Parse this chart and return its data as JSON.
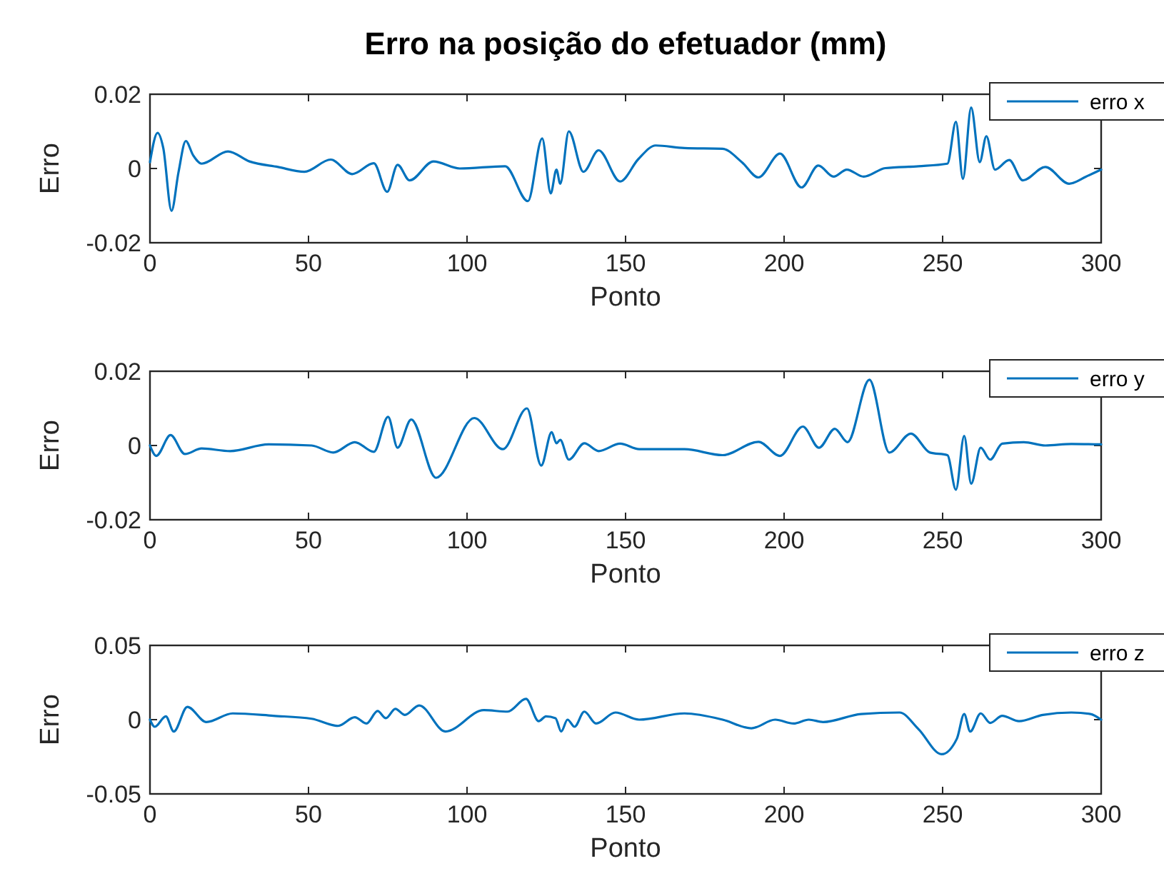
{
  "chart_data": [
    {
      "type": "line",
      "title": "Erro na posição do efetuador (mm)",
      "xlabel": "Ponto",
      "ylabel": "Erro",
      "xlim": [
        0,
        300
      ],
      "xticks": [
        0,
        50,
        100,
        150,
        200,
        250,
        300
      ],
      "ylim": [
        -0.02,
        0.02
      ],
      "yticks": [
        -0.02,
        0,
        0.02
      ],
      "legend": "top right",
      "grid": false,
      "series": [
        {
          "name": "erro x",
          "color": "#0072bd",
          "x": [
            0,
            2.4,
            4.2,
            6.8,
            9,
            11.3,
            13.6,
            16.3,
            24.6,
            31.4,
            40.4,
            48.7,
            57,
            63.8,
            70.6,
            74.8,
            78.1,
            81.9,
            89.4,
            97.7,
            112,
            119.2,
            123.7,
            126.4,
            128.2,
            129.4,
            132.1,
            136.7,
            141.5,
            148.3,
            154,
            159.5,
            168.6,
            180.6,
            186.7,
            191.9,
            198.7,
            205.5,
            210.8,
            215.6,
            219.8,
            225.1,
            231.9,
            242.4,
            251.5,
            254.2,
            256.4,
            259,
            261.7,
            263.8,
            266.5,
            271,
            275.3,
            282.4,
            289.9,
            295.2,
            300
          ],
          "values": [
            0.0017,
            0.0096,
            0.0055,
            -0.0114,
            -0.001,
            0.0074,
            0.0036,
            0.0013,
            0.0046,
            0.0019,
            0.0004,
            -0.0009,
            0.0024,
            -0.0015,
            0.0014,
            -0.0063,
            0.001,
            -0.0032,
            0.0019,
            0,
            0.0006,
            -0.0088,
            0.0081,
            -0.0067,
            -0.0003,
            -0.0041,
            0.01,
            -0.0009,
            0.0049,
            -0.0035,
            0.0025,
            0.0062,
            0.0055,
            0.0053,
            0.0017,
            -0.0024,
            0.004,
            -0.0051,
            0.0008,
            -0.0022,
            -0.0003,
            -0.0022,
            0.0001,
            0.0006,
            0.0013,
            0.0126,
            -0.0028,
            0.0164,
            0.0017,
            0.0087,
            -0.0003,
            0.0023,
            -0.0032,
            0.0004,
            -0.0041,
            -0.0022,
            -0.0003
          ]
        }
      ]
    },
    {
      "type": "line",
      "xlabel": "Ponto",
      "ylabel": "Erro",
      "xlim": [
        0,
        300
      ],
      "xticks": [
        0,
        50,
        100,
        150,
        200,
        250,
        300
      ],
      "ylim": [
        -0.02,
        0.02
      ],
      "yticks": [
        -0.02,
        0,
        0.02
      ],
      "legend": "top right",
      "grid": false,
      "series": [
        {
          "name": "erro y",
          "color": "#0072bd",
          "x": [
            0,
            2,
            6.5,
            11,
            16.3,
            25.3,
            37.4,
            51,
            57.8,
            64.6,
            70.6,
            75.1,
            78.1,
            82.4,
            90.2,
            102.3,
            111.3,
            118.9,
            123.4,
            126.7,
            128.2,
            129.4,
            132.1,
            137,
            141.5,
            148.3,
            154.3,
            168.6,
            180.6,
            191.9,
            198.7,
            205.9,
            211,
            216,
            220,
            226.9,
            233.2,
            240,
            246,
            251.5,
            254.2,
            256.8,
            259,
            262,
            265,
            268.8,
            275.6,
            282.4,
            290.6,
            300
          ],
          "values": [
            0,
            -0.0028,
            0.0028,
            -0.0023,
            -0.0008,
            -0.0015,
            0.0003,
            0,
            -0.0019,
            0.0009,
            -0.0017,
            0.0077,
            -0.0006,
            0.007,
            -0.0087,
            0.0074,
            -0.001,
            0.01,
            -0.0054,
            0.0036,
            0.0006,
            0.0015,
            -0.0038,
            0.0006,
            -0.0015,
            0.0005,
            -0.001,
            -0.001,
            -0.0026,
            0.001,
            -0.0028,
            0.0051,
            -0.0006,
            0.0045,
            0.0009,
            0.0177,
            -0.0019,
            0.0032,
            -0.0019,
            -0.0026,
            -0.0119,
            0.0026,
            -0.0103,
            -0.0006,
            -0.0038,
            0.0005,
            0.0009,
            0,
            0.0004,
            0.0003
          ]
        }
      ]
    },
    {
      "type": "line",
      "xlabel": "Ponto",
      "ylabel": "Erro",
      "xlim": [
        0,
        300
      ],
      "xticks": [
        0,
        50,
        100,
        150,
        200,
        250,
        300
      ],
      "ylim": [
        -0.05,
        0.05
      ],
      "yticks": [
        -0.05,
        0,
        0.05
      ],
      "legend": "top right",
      "grid": false,
      "series": [
        {
          "name": "erro z",
          "color": "#0072bd",
          "x": [
            0,
            1.5,
            5,
            7.5,
            11.8,
            17.8,
            26.1,
            38.9,
            51,
            59.3,
            64.6,
            68.3,
            71.8,
            74.4,
            77.4,
            80.4,
            84.9,
            93.2,
            105.3,
            112.8,
            118.6,
            122.6,
            124.9,
            127.9,
            129.7,
            131.7,
            133.9,
            137,
            140.7,
            146.8,
            154.3,
            168.6,
            180.6,
            189.7,
            197.2,
            203,
            207.8,
            212.3,
            224.3,
            236.4,
            242.4,
            249.7,
            254.5,
            256.8,
            258.7,
            262,
            265,
            268.8,
            274.1,
            281.6,
            290.6,
            296.6,
            300
          ],
          "values": [
            0,
            -0.0048,
            0.0022,
            -0.008,
            0.0086,
            -0.0016,
            0.0042,
            0.0026,
            0.0006,
            -0.0042,
            0.0016,
            -0.0026,
            0.0058,
            0.001,
            0.0073,
            0.0032,
            0.0096,
            -0.008,
            0.0064,
            0.0054,
            0.014,
            -0.001,
            0.0022,
            0.001,
            -0.008,
            0,
            -0.0048,
            0.0054,
            -0.0026,
            0.0048,
            0,
            0.0042,
            0,
            -0.0058,
            0,
            -0.0026,
            0,
            -0.0016,
            0.0038,
            0.0048,
            -0.0064,
            -0.0233,
            -0.0128,
            0.0038,
            -0.008,
            0.0042,
            -0.0022,
            0.0026,
            -0.001,
            0.0032,
            0.0048,
            0.0038,
            0
          ]
        }
      ]
    }
  ]
}
